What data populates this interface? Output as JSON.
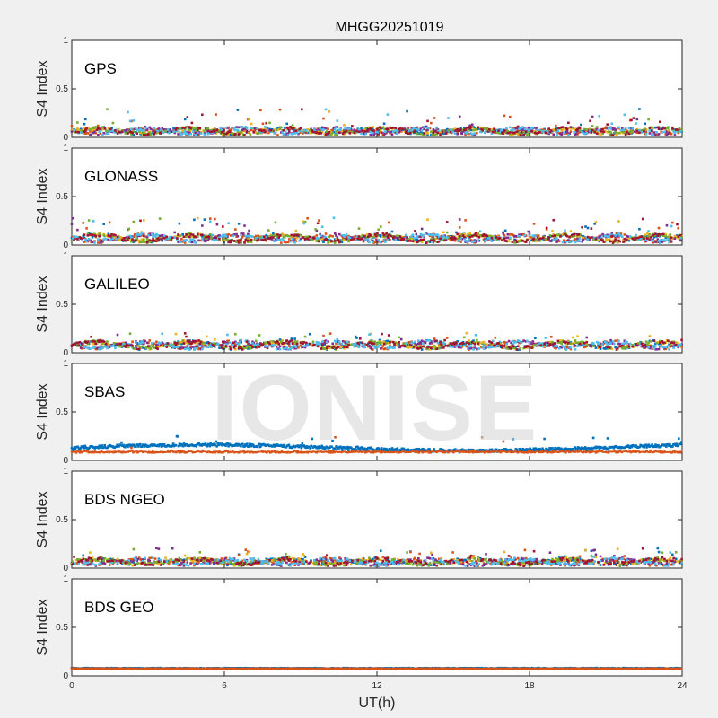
{
  "figure": {
    "title": "MHGG20251019",
    "xlabel": "UT(h)",
    "watermark": "IONISE"
  },
  "chart_data": {
    "type": "scatter",
    "xlim": [
      0,
      24
    ],
    "xticks": [
      0,
      6,
      12,
      18,
      24
    ],
    "ylim": [
      0,
      1
    ],
    "yticks": [
      0,
      0.5,
      1
    ],
    "ylabel": "S4 Index",
    "series_colors": [
      "#0072BD",
      "#D95319",
      "#EDB120",
      "#7E2F8E",
      "#77AC30",
      "#4DBEEE",
      "#A2142F"
    ],
    "panels": [
      {
        "label": "GPS",
        "n_series": 7,
        "baseline": [
          0.04,
          0.09
        ],
        "spike_prob": 0.06,
        "max_spike": 0.35
      },
      {
        "label": "GLONASS",
        "n_series": 7,
        "baseline": [
          0.04,
          0.1
        ],
        "spike_prob": 0.07,
        "max_spike": 0.33
      },
      {
        "label": "GALILEO",
        "n_series": 7,
        "baseline": [
          0.05,
          0.11
        ],
        "spike_prob": 0.05,
        "max_spike": 0.24
      },
      {
        "label": "SBAS",
        "n_series": 2,
        "baseline": [
          0.09,
          0.17
        ],
        "spike_prob": 0.02,
        "max_spike": 0.26
      },
      {
        "label": "BDS NGEO",
        "n_series": 7,
        "baseline": [
          0.04,
          0.09
        ],
        "spike_prob": 0.05,
        "max_spike": 0.24
      },
      {
        "label": "BDS GEO",
        "n_series": 2,
        "baseline": [
          0.07,
          0.08
        ],
        "spike_prob": 0.0,
        "max_spike": 0.1
      }
    ]
  }
}
